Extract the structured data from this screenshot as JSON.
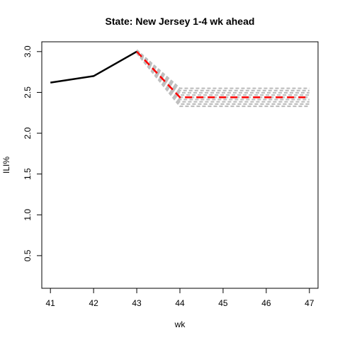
{
  "chart_data": {
    "type": "line",
    "title": "State: New Jersey 1-4 wk ahead",
    "xlabel": "wk",
    "ylabel": "ILI%",
    "xlim": [
      40.8,
      47.2
    ],
    "ylim": [
      0.1,
      3.12
    ],
    "x_ticks": [
      41,
      42,
      43,
      44,
      45,
      46,
      47
    ],
    "y_ticks": [
      0.5,
      1.0,
      1.5,
      2.0,
      2.5,
      3.0
    ],
    "y_tick_labels": [
      "0.5",
      "1.0",
      "1.5",
      "2.0",
      "2.5",
      "3.0"
    ],
    "grid": false,
    "legend": "none",
    "series": [
      {
        "role": "observed",
        "style": "solid",
        "color": "#000000",
        "x": [
          41,
          42,
          43
        ],
        "y": [
          2.62,
          2.7,
          3.0
        ]
      },
      {
        "role": "forecast",
        "style": "dashed",
        "color": "#ff0000",
        "x": [
          43,
          44,
          45,
          46,
          47
        ],
        "y": [
          3.0,
          2.44,
          2.44,
          2.44,
          2.44
        ]
      }
    ],
    "uncertainty_band": {
      "color": "#bebebe",
      "style": "dashed",
      "x": [
        43,
        44,
        45,
        46,
        47
      ],
      "lower": [
        2.98,
        2.33,
        2.33,
        2.33,
        2.33
      ],
      "upper": [
        3.02,
        2.55,
        2.55,
        2.55,
        2.55
      ],
      "line_count": 9
    }
  }
}
